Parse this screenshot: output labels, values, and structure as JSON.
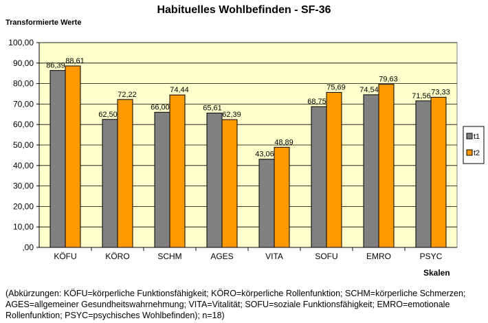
{
  "chart_data": {
    "type": "bar",
    "title": "Habituelles Wohlbefinden - SF-36",
    "ylabel": "Transformierte Werte",
    "xlabel": "Skalen",
    "categories": [
      "KÖFU",
      "KÖRO",
      "SCHM",
      "AGES",
      "VITA",
      "SOFU",
      "EMRO",
      "PSYC"
    ],
    "series": [
      {
        "name": "t1",
        "values": [
          86.39,
          62.5,
          66.0,
          65.61,
          43.06,
          68.75,
          74.54,
          71.56
        ],
        "labels": [
          "86,39",
          "62,50",
          "66,00",
          "65,61",
          "43,06",
          "68,75",
          "74,54",
          "71,56"
        ],
        "color": "#808080"
      },
      {
        "name": "t2",
        "values": [
          88.61,
          72.22,
          74.44,
          62.39,
          48.89,
          75.69,
          79.63,
          73.33
        ],
        "labels": [
          "88,61",
          "72,22",
          "74,44",
          "62,39",
          "48,89",
          "75,69",
          "79,63",
          "73,33"
        ],
        "color": "#ff9900"
      }
    ],
    "ylim": [
      0,
      100
    ],
    "yticks": [
      0,
      10,
      20,
      30,
      40,
      50,
      60,
      70,
      80,
      90,
      100
    ],
    "ytick_labels": [
      ",00",
      "10,00",
      "20,00",
      "30,00",
      "40,00",
      "50,00",
      "60,00",
      "70,00",
      "80,00",
      "90,00",
      "100,00"
    ],
    "grid": true,
    "plot_background": "#ffffcc",
    "legend_position": "right"
  },
  "footnote": "(Abkürzungen: KÖFU=körperliche Funktionsfähigkeit; KÖRO=körperliche Rollenfunktion; SCHM=körperliche Schmerzen; AGES=allgemeiner Gesundheitswahrnehmung; VITA=Vitalität; SOFU=soziale Funktionsfähigkeit; EMRO=emotionale Rollenfunktion; PSYC=psychisches Wohlbefinden); n=18)"
}
